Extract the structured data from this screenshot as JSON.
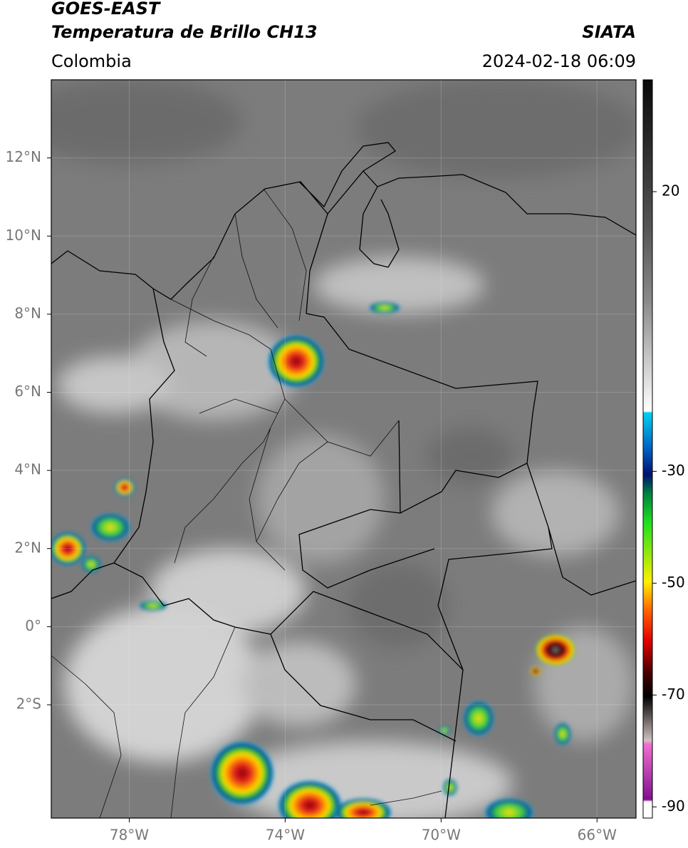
{
  "header": {
    "title": "GOES-EAST",
    "subtitle": "Temperatura de Brillo CH13",
    "source": "SIATA",
    "region": "Colombia",
    "timestamp": "2024-02-18 06:09"
  },
  "map": {
    "xlim": [
      -80,
      -65
    ],
    "ylim": [
      -4.9,
      14
    ],
    "xticks": [
      {
        "value": -78,
        "label": "78°W"
      },
      {
        "value": -74,
        "label": "74°W"
      },
      {
        "value": -70,
        "label": "70°W"
      },
      {
        "value": -66,
        "label": "66°W"
      }
    ],
    "yticks": [
      {
        "value": 12,
        "label": "12°N"
      },
      {
        "value": 10,
        "label": "10°N"
      },
      {
        "value": 8,
        "label": "8°N"
      },
      {
        "value": 6,
        "label": "6°N"
      },
      {
        "value": 4,
        "label": "4°N"
      },
      {
        "value": 2,
        "label": "2°N"
      },
      {
        "value": 0,
        "label": "0°"
      },
      {
        "value": -2,
        "label": "2°S"
      }
    ]
  },
  "colorbar": {
    "clim": [
      -92,
      40
    ],
    "ticks": [
      20,
      -30,
      -50,
      -70,
      -90
    ]
  }
}
